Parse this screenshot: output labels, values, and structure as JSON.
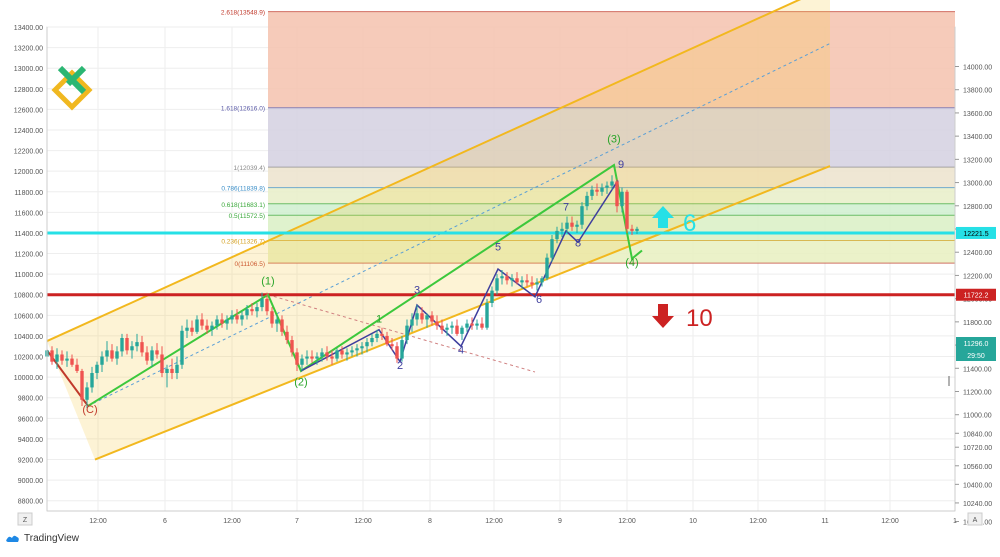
{
  "chart_data": {
    "type": "candlestick",
    "left_axis": {
      "ylim": [
        8700,
        13400
      ],
      "ticks": [
        8800,
        9000,
        9200,
        9400,
        9600,
        9800,
        10000,
        10200,
        10400,
        10600,
        10800,
        11000,
        11200,
        11400,
        11600,
        11800,
        12000,
        12200,
        12400,
        12600,
        12800,
        13000,
        13200,
        13400
      ]
    },
    "right_axis": {
      "ticks": [
        10080,
        10240,
        10400,
        10560,
        10720,
        10840,
        11000,
        11200,
        11400,
        11600,
        11800,
        12000,
        12200,
        12400,
        12600,
        12800,
        13000,
        13200,
        13400,
        13600,
        13800,
        14000
      ]
    },
    "x_ticks": [
      "12:00",
      "6",
      "12:00",
      "7",
      "12:00",
      "8",
      "12:00",
      "9",
      "12:00",
      "10",
      "12:00",
      "11",
      "12:00",
      "1"
    ],
    "fib_levels": [
      {
        "label": "2.618(13548.9)",
        "value": 13548.9
      },
      {
        "label": "1.618(12616.0)",
        "value": 12616.0
      },
      {
        "label": "1(12039.4)",
        "value": 12039.4
      },
      {
        "label": "0.786(11839.8)",
        "value": 11839.8
      },
      {
        "label": "0.618(11683.1)",
        "value": 11683.1
      },
      {
        "label": "0.5(11572.5)",
        "value": 11572.5
      },
      {
        "label": "0.236(11326.7)",
        "value": 11326.7
      },
      {
        "label": "0(11106.5)",
        "value": 11106.5
      }
    ],
    "horizontal_lines": [
      {
        "value": 11400,
        "color": "#26e0e6",
        "right_label": "12221.5"
      },
      {
        "value": 10800,
        "color": "#cc2222",
        "right_label": "11722.2"
      }
    ],
    "price_badges": [
      {
        "label": "11296.0",
        "value": 10340
      },
      {
        "label": "29:50",
        "value": 10180
      }
    ],
    "wave_labels": [
      {
        "text": "(C)",
        "x": 90,
        "y": 9650,
        "color": "#c0392b"
      },
      {
        "text": "(1)",
        "x": 268,
        "y": 10900,
        "color": "#2aa52a"
      },
      {
        "text": "(2)",
        "x": 301,
        "y": 9920,
        "color": "#2aa52a"
      },
      {
        "text": "(3)",
        "x": 614,
        "y": 12280,
        "color": "#2aa52a"
      },
      {
        "text": "(4)",
        "x": 632,
        "y": 11080,
        "color": "#2aa52a"
      },
      {
        "text": "1",
        "x": 379,
        "y": 10530,
        "color": "#2aa52a"
      },
      {
        "text": "2",
        "x": 400,
        "y": 10080,
        "color": "#3f3f9e"
      },
      {
        "text": "3",
        "x": 417,
        "y": 10810,
        "color": "#3f3f9e"
      },
      {
        "text": "4",
        "x": 461,
        "y": 10230,
        "color": "#3f3f9e"
      },
      {
        "text": "5",
        "x": 498,
        "y": 11230,
        "color": "#3f3f9e"
      },
      {
        "text": "6",
        "x": 539,
        "y": 10720,
        "color": "#3f3f9e"
      },
      {
        "text": "7",
        "x": 566,
        "y": 11620,
        "color": "#3f3f9e"
      },
      {
        "text": "8",
        "x": 578,
        "y": 11270,
        "color": "#3f3f9e"
      },
      {
        "text": "9",
        "x": 621,
        "y": 12030,
        "color": "#3f3f9e"
      }
    ],
    "targets": [
      {
        "text": "6",
        "direction": "up",
        "color": "#26e0e6"
      },
      {
        "text": "10",
        "direction": "down",
        "color": "#cc2222"
      }
    ],
    "candles": [
      [
        47,
        10200,
        10300,
        10000,
        10260
      ],
      [
        52,
        10260,
        10300,
        10120,
        10150
      ],
      [
        57,
        10150,
        10280,
        10080,
        10220
      ],
      [
        62,
        10220,
        10260,
        10120,
        10160
      ],
      [
        67,
        10160,
        10250,
        10100,
        10180
      ],
      [
        72,
        10180,
        10220,
        10100,
        10120
      ],
      [
        77,
        10120,
        10180,
        10040,
        10060
      ],
      [
        82,
        10060,
        10080,
        9720,
        9780
      ],
      [
        87,
        9780,
        9950,
        9700,
        9900
      ],
      [
        92,
        9900,
        10100,
        9850,
        10040
      ],
      [
        97,
        10040,
        10150,
        9980,
        10120
      ],
      [
        102,
        10120,
        10250,
        10050,
        10200
      ],
      [
        107,
        10200,
        10350,
        10150,
        10260
      ],
      [
        112,
        10260,
        10320,
        10150,
        10180
      ],
      [
        117,
        10180,
        10300,
        10120,
        10250
      ],
      [
        122,
        10250,
        10420,
        10200,
        10380
      ],
      [
        127,
        10380,
        10420,
        10220,
        10260
      ],
      [
        132,
        10260,
        10350,
        10180,
        10300
      ],
      [
        137,
        10300,
        10420,
        10250,
        10340
      ],
      [
        142,
        10340,
        10400,
        10200,
        10240
      ],
      [
        147,
        10240,
        10300,
        10120,
        10160
      ],
      [
        152,
        10160,
        10300,
        10100,
        10260
      ],
      [
        157,
        10260,
        10330,
        10180,
        10220
      ],
      [
        162,
        10220,
        10300,
        10000,
        10040
      ],
      [
        167,
        10040,
        10120,
        9900,
        10080
      ],
      [
        172,
        10080,
        10180,
        9980,
        10040
      ],
      [
        177,
        10040,
        10200,
        9980,
        10120
      ],
      [
        182,
        10120,
        10500,
        10080,
        10450
      ],
      [
        187,
        10450,
        10560,
        10380,
        10480
      ],
      [
        192,
        10480,
        10550,
        10400,
        10440
      ],
      [
        197,
        10440,
        10600,
        10420,
        10560
      ],
      [
        202,
        10560,
        10620,
        10460,
        10500
      ],
      [
        207,
        10500,
        10560,
        10420,
        10460
      ],
      [
        212,
        10460,
        10540,
        10400,
        10500
      ],
      [
        217,
        10500,
        10600,
        10460,
        10560
      ],
      [
        222,
        10560,
        10620,
        10480,
        10520
      ],
      [
        227,
        10520,
        10600,
        10460,
        10560
      ],
      [
        232,
        10560,
        10650,
        10520,
        10600
      ],
      [
        237,
        10600,
        10660,
        10520,
        10560
      ],
      [
        242,
        10560,
        10640,
        10500,
        10600
      ],
      [
        247,
        10600,
        10700,
        10560,
        10660
      ],
      [
        252,
        10660,
        10720,
        10600,
        10640
      ],
      [
        257,
        10640,
        10720,
        10580,
        10680
      ],
      [
        262,
        10680,
        10820,
        10640,
        10760
      ],
      [
        267,
        10760,
        10820,
        10600,
        10640
      ],
      [
        272,
        10640,
        10680,
        10480,
        10520
      ],
      [
        277,
        10520,
        10600,
        10440,
        10560
      ],
      [
        282,
        10560,
        10600,
        10400,
        10440
      ],
      [
        287,
        10440,
        10500,
        10320,
        10360
      ],
      [
        292,
        10360,
        10400,
        10200,
        10240
      ],
      [
        297,
        10240,
        10280,
        10060,
        10120
      ],
      [
        302,
        10120,
        10220,
        10060,
        10180
      ],
      [
        307,
        10180,
        10260,
        10120,
        10200
      ],
      [
        312,
        10200,
        10260,
        10140,
        10180
      ],
      [
        317,
        10180,
        10240,
        10120,
        10200
      ],
      [
        322,
        10200,
        10280,
        10150,
        10240
      ],
      [
        327,
        10240,
        10300,
        10160,
        10200
      ],
      [
        332,
        10200,
        10260,
        10120,
        10180
      ],
      [
        337,
        10180,
        10280,
        10150,
        10260
      ],
      [
        342,
        10260,
        10300,
        10180,
        10220
      ],
      [
        347,
        10220,
        10280,
        10160,
        10240
      ],
      [
        352,
        10240,
        10300,
        10200,
        10260
      ],
      [
        357,
        10260,
        10320,
        10200,
        10280
      ],
      [
        362,
        10280,
        10340,
        10220,
        10300
      ],
      [
        367,
        10300,
        10380,
        10240,
        10340
      ],
      [
        372,
        10340,
        10420,
        10300,
        10380
      ],
      [
        377,
        10380,
        10460,
        10340,
        10420
      ],
      [
        382,
        10420,
        10480,
        10360,
        10400
      ],
      [
        387,
        10400,
        10440,
        10300,
        10320
      ],
      [
        392,
        10320,
        10380,
        10260,
        10300
      ],
      [
        397,
        10300,
        10340,
        10140,
        10180
      ],
      [
        402,
        10180,
        10400,
        10150,
        10360
      ],
      [
        407,
        10360,
        10560,
        10320,
        10500
      ],
      [
        412,
        10500,
        10620,
        10440,
        10560
      ],
      [
        417,
        10560,
        10700,
        10500,
        10620
      ],
      [
        422,
        10620,
        10680,
        10520,
        10560
      ],
      [
        427,
        10560,
        10620,
        10480,
        10600
      ],
      [
        432,
        10600,
        10640,
        10500,
        10540
      ],
      [
        437,
        10540,
        10600,
        10460,
        10500
      ],
      [
        442,
        10500,
        10560,
        10420,
        10460
      ],
      [
        447,
        10460,
        10520,
        10400,
        10480
      ],
      [
        452,
        10480,
        10540,
        10420,
        10500
      ],
      [
        457,
        10500,
        10560,
        10400,
        10420
      ],
      [
        462,
        10420,
        10500,
        10360,
        10480
      ],
      [
        467,
        10480,
        10560,
        10440,
        10520
      ],
      [
        472,
        10520,
        10580,
        10460,
        10500
      ],
      [
        477,
        10500,
        10560,
        10460,
        10520
      ],
      [
        482,
        10520,
        10580,
        10460,
        10480
      ],
      [
        487,
        10480,
        10760,
        10460,
        10720
      ],
      [
        492,
        10720,
        10880,
        10680,
        10840
      ],
      [
        497,
        10840,
        11000,
        10800,
        10960
      ],
      [
        502,
        10960,
        11040,
        10900,
        10980
      ],
      [
        507,
        10980,
        11020,
        10900,
        10940
      ],
      [
        512,
        10940,
        11000,
        10880,
        10960
      ],
      [
        517,
        10960,
        11020,
        10900,
        10920
      ],
      [
        522,
        10920,
        10980,
        10860,
        10940
      ],
      [
        527,
        10940,
        11000,
        10880,
        10920
      ],
      [
        532,
        10920,
        10980,
        10860,
        10900
      ],
      [
        537,
        10900,
        10960,
        10840,
        10920
      ],
      [
        542,
        10920,
        10980,
        10880,
        10960
      ],
      [
        547,
        10960,
        11200,
        10940,
        11160
      ],
      [
        552,
        11160,
        11380,
        11120,
        11340
      ],
      [
        557,
        11340,
        11460,
        11300,
        11420
      ],
      [
        562,
        11420,
        11500,
        11360,
        11440
      ],
      [
        567,
        11440,
        11560,
        11400,
        11500
      ],
      [
        572,
        11500,
        11560,
        11420,
        11460
      ],
      [
        577,
        11460,
        11520,
        11400,
        11480
      ],
      [
        582,
        11480,
        11700,
        11440,
        11660
      ],
      [
        587,
        11660,
        11800,
        11620,
        11760
      ],
      [
        592,
        11760,
        11860,
        11720,
        11820
      ],
      [
        597,
        11820,
        11880,
        11760,
        11800
      ],
      [
        602,
        11800,
        11880,
        11760,
        11840
      ],
      [
        607,
        11840,
        11900,
        11780,
        11860
      ],
      [
        612,
        11860,
        11960,
        11820,
        11900
      ],
      [
        617,
        11900,
        11920,
        11600,
        11660
      ],
      [
        622,
        11660,
        11840,
        11600,
        11800
      ],
      [
        627,
        11800,
        11820,
        11400,
        11440
      ],
      [
        632,
        11440,
        11480,
        11380,
        11420
      ],
      [
        637,
        11420,
        11460,
        11390,
        11440
      ]
    ]
  },
  "axis_buttons": {
    "left": "Z",
    "right": "A"
  },
  "footer": {
    "brand": "TradingView"
  }
}
